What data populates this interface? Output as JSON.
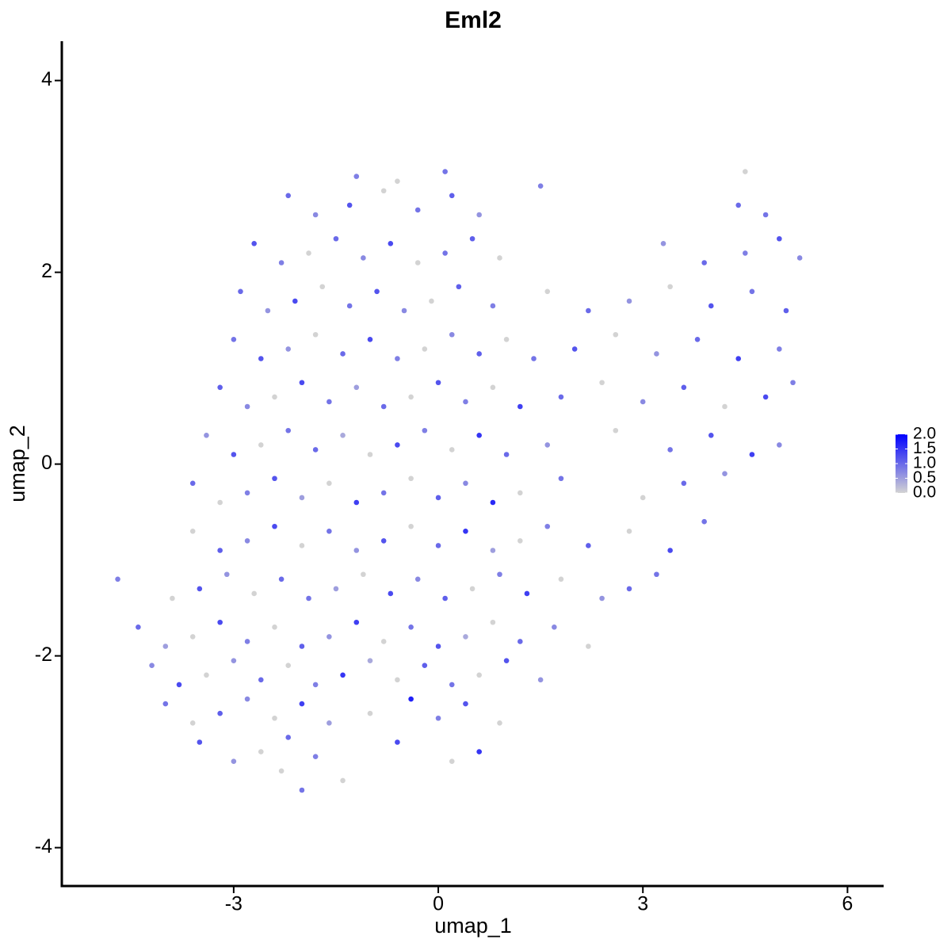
{
  "chart_data": {
    "type": "scatter",
    "title": "Eml2",
    "x_label": "umap_1",
    "y_label": "umap_2",
    "xlim": [
      -5.52,
      6.53
    ],
    "ylim": [
      -4.4,
      4.41
    ],
    "xticks": [
      -3,
      0,
      3,
      6
    ],
    "yticks": [
      -4,
      -2,
      0,
      2,
      4
    ],
    "colors": [
      "#d3d3d3",
      "#0000ff"
    ],
    "color_lim": [
      0,
      2
    ],
    "color_ticks": [
      {
        "value": 0,
        "label": "0.0"
      },
      0.5,
      {
        "value": 1,
        "label": "1.0"
      },
      1.5,
      {
        "value": 2,
        "label": "2.0"
      }
    ],
    "x": [
      -2.3,
      -2.0,
      -1.4,
      -3.5,
      -3.0,
      -2.6,
      -2.2,
      -1.8,
      -0.6,
      0.2,
      0.6,
      -4.0,
      -3.6,
      -3.2,
      -2.8,
      -2.4,
      -2.0,
      -1.6,
      -1.0,
      -0.4,
      0.0,
      0.4,
      0.9,
      -4.2,
      -3.8,
      -3.4,
      -3.0,
      -2.6,
      -2.2,
      -1.8,
      -1.4,
      -1.0,
      -0.6,
      -0.2,
      0.2,
      0.6,
      1.0,
      1.5,
      -4.4,
      -4.0,
      -3.6,
      -3.2,
      -2.8,
      -2.4,
      -2.0,
      -1.6,
      -1.2,
      -0.8,
      -0.4,
      0.0,
      0.4,
      0.8,
      1.2,
      1.7,
      2.2,
      -4.7,
      -3.9,
      -3.5,
      -3.1,
      -2.7,
      -2.3,
      -1.9,
      -1.5,
      -1.1,
      -0.7,
      -0.3,
      0.1,
      0.5,
      0.9,
      1.3,
      1.8,
      2.4,
      2.8,
      3.2,
      -3.6,
      -3.2,
      -2.8,
      -2.4,
      -2.0,
      -1.6,
      -1.2,
      -0.8,
      -0.4,
      0.0,
      0.4,
      0.8,
      1.2,
      1.6,
      2.2,
      2.8,
      3.4,
      3.9,
      -3.6,
      -3.2,
      -2.8,
      -2.4,
      -2.0,
      -1.6,
      -1.2,
      -0.8,
      -0.4,
      0.0,
      0.4,
      0.8,
      1.2,
      1.8,
      3.0,
      3.6,
      4.2,
      -3.4,
      -3.0,
      -2.6,
      -2.2,
      -1.8,
      -1.4,
      -1.0,
      -0.6,
      -0.2,
      0.2,
      0.6,
      1.0,
      1.6,
      2.6,
      3.4,
      4.0,
      4.6,
      5.0,
      -3.2,
      -2.8,
      -2.4,
      -2.0,
      -1.6,
      -1.2,
      -0.8,
      -0.4,
      0.0,
      0.4,
      0.8,
      1.2,
      1.8,
      2.4,
      3.0,
      3.6,
      4.2,
      4.8,
      5.2,
      -3.0,
      -2.6,
      -2.2,
      -1.8,
      -1.4,
      -1.0,
      -0.6,
      -0.2,
      0.2,
      0.6,
      1.0,
      1.4,
      2.0,
      2.6,
      3.2,
      3.8,
      4.4,
      5.0,
      -2.9,
      -2.5,
      -2.1,
      -1.7,
      -1.3,
      -0.9,
      -0.5,
      -0.1,
      0.3,
      0.8,
      1.6,
      2.2,
      2.8,
      3.4,
      4.0,
      4.6,
      5.1,
      -2.7,
      -2.3,
      -1.9,
      -1.5,
      -1.1,
      -0.7,
      -0.3,
      0.1,
      0.5,
      0.9,
      3.3,
      3.9,
      4.5,
      5.0,
      5.3,
      -2.2,
      -1.8,
      -1.3,
      -0.8,
      -0.3,
      0.2,
      0.6,
      1.5,
      4.4,
      4.8,
      -1.2,
      -0.6,
      0.1,
      4.5
    ],
    "y": [
      -3.2,
      -3.4,
      -3.3,
      -2.9,
      -3.1,
      -3.0,
      -2.85,
      -3.05,
      -2.9,
      -3.1,
      -3.0,
      -2.5,
      -2.7,
      -2.6,
      -2.45,
      -2.65,
      -2.5,
      -2.7,
      -2.6,
      -2.45,
      -2.65,
      -2.5,
      -2.7,
      -2.1,
      -2.3,
      -2.2,
      -2.05,
      -2.25,
      -2.1,
      -2.3,
      -2.2,
      -2.05,
      -2.25,
      -2.1,
      -2.3,
      -2.2,
      -2.05,
      -2.25,
      -1.7,
      -1.9,
      -1.8,
      -1.65,
      -1.85,
      -1.7,
      -1.9,
      -1.8,
      -1.65,
      -1.85,
      -1.7,
      -1.9,
      -1.8,
      -1.65,
      -1.85,
      -1.7,
      -1.9,
      -1.2,
      -1.4,
      -1.3,
      -1.15,
      -1.35,
      -1.2,
      -1.4,
      -1.3,
      -1.15,
      -1.35,
      -1.2,
      -1.4,
      -1.3,
      -1.15,
      -1.35,
      -1.2,
      -1.4,
      -1.3,
      -1.15,
      -0.7,
      -0.9,
      -0.8,
      -0.65,
      -0.85,
      -0.7,
      -0.9,
      -0.8,
      -0.65,
      -0.85,
      -0.7,
      -0.9,
      -0.8,
      -0.65,
      -0.85,
      -0.7,
      -0.9,
      -0.6,
      -0.2,
      -0.4,
      -0.3,
      -0.15,
      -0.35,
      -0.2,
      -0.4,
      -0.3,
      -0.15,
      -0.35,
      -0.2,
      -0.4,
      -0.3,
      -0.15,
      -0.35,
      -0.2,
      -0.1,
      0.3,
      0.1,
      0.2,
      0.35,
      0.15,
      0.3,
      0.1,
      0.2,
      0.35,
      0.15,
      0.3,
      0.1,
      0.2,
      0.35,
      0.15,
      0.3,
      0.1,
      0.2,
      0.8,
      0.6,
      0.7,
      0.85,
      0.65,
      0.8,
      0.6,
      0.7,
      0.85,
      0.65,
      0.8,
      0.6,
      0.7,
      0.85,
      0.65,
      0.8,
      0.6,
      0.7,
      0.85,
      1.3,
      1.1,
      1.2,
      1.35,
      1.15,
      1.3,
      1.1,
      1.2,
      1.35,
      1.15,
      1.3,
      1.1,
      1.2,
      1.35,
      1.15,
      1.3,
      1.1,
      1.2,
      1.8,
      1.6,
      1.7,
      1.85,
      1.65,
      1.8,
      1.6,
      1.7,
      1.85,
      1.65,
      1.8,
      1.6,
      1.7,
      1.85,
      1.65,
      1.8,
      1.6,
      2.3,
      2.1,
      2.2,
      2.35,
      2.15,
      2.3,
      2.1,
      2.2,
      2.35,
      2.15,
      2.3,
      2.1,
      2.2,
      2.35,
      2.15,
      2.8,
      2.6,
      2.7,
      2.85,
      2.65,
      2.8,
      2.6,
      2.9,
      2.7,
      2.6,
      3.0,
      2.95,
      3.05,
      3.05
    ],
    "values": [
      0,
      0.9,
      0,
      1.2,
      0.6,
      0,
      1.0,
      0.8,
      1.3,
      0,
      1.5,
      0.9,
      0,
      1.1,
      0.7,
      0,
      1.4,
      0.5,
      0,
      1.7,
      0.8,
      1.2,
      0,
      0.7,
      1.3,
      0,
      0.6,
      1.0,
      0,
      0.8,
      1.5,
      0.4,
      0,
      1.1,
      0.9,
      0,
      1.2,
      0.6,
      1.0,
      0.5,
      0,
      1.3,
      0.8,
      0,
      1.1,
      0.6,
      1.4,
      0,
      0.9,
      1.2,
      0.4,
      0,
      1.0,
      0.7,
      0,
      0.8,
      0,
      1.2,
      0.6,
      0,
      1.0,
      0.9,
      0.5,
      0,
      1.3,
      0.7,
      1.1,
      0,
      0.8,
      1.4,
      0,
      0.6,
      1.0,
      0.9,
      0,
      1.1,
      0.7,
      1.3,
      0,
      0.9,
      0.6,
      1.2,
      0,
      1.0,
      1.5,
      0.5,
      0,
      0.8,
      1.1,
      0,
      1.3,
      0.9,
      1.0,
      0,
      0.8,
      1.2,
      0.5,
      0,
      1.4,
      0.9,
      0,
      1.1,
      0.7,
      1.6,
      0,
      0.9,
      0,
      1.0,
      0.6,
      0.6,
      1.2,
      0,
      0.9,
      1.0,
      0.4,
      0,
      1.3,
      0.8,
      0,
      1.5,
      1.0,
      0.6,
      0,
      0.9,
      1.2,
      1.4,
      0.7,
      1.1,
      0.7,
      0,
      1.3,
      0.9,
      0.5,
      1.0,
      0,
      1.2,
      0.8,
      0,
      1.4,
      1.0,
      0,
      0.7,
      1.1,
      0,
      1.3,
      0.8,
      0.9,
      1.2,
      0.6,
      0,
      1.0,
      1.3,
      0.8,
      0,
      0.7,
      1.1,
      0,
      0.9,
      1.2,
      0,
      0.6,
      1.0,
      1.4,
      0.8,
      1.0,
      0.6,
      1.3,
      0,
      0.9,
      1.2,
      0.7,
      0,
      1.1,
      0.8,
      0,
      1.0,
      0.6,
      0,
      1.2,
      0.9,
      1.1,
      1.2,
      0.8,
      0,
      1.0,
      0.7,
      1.3,
      0,
      0.9,
      1.1,
      0,
      0.6,
      1.0,
      0.8,
      1.2,
      0.7,
      1.0,
      0.7,
      1.2,
      0,
      0.9,
      1.1,
      0.6,
      0.8,
      1.0,
      0.9,
      0.8,
      0,
      0.9,
      0
    ]
  }
}
